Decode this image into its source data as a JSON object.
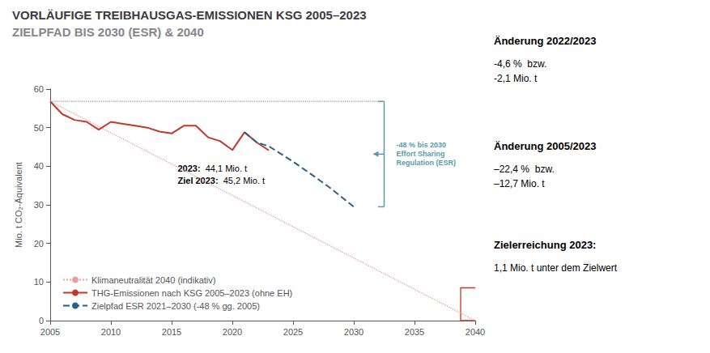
{
  "chart_data": {
    "type": "line",
    "title": "VORLÄUFIGE TREIBHAUSGAS-EMISSIONEN KSG 2005–2023",
    "subtitle": "ZIELPFAD BIS 2030 (ESR) & 2040",
    "y_label": "Mio. t CO₂-Äquivalent",
    "xlim": [
      2005,
      2040
    ],
    "ylim": [
      0,
      60
    ],
    "xticks": [
      2005,
      2010,
      2015,
      2020,
      2025,
      2030,
      2035,
      2040
    ],
    "yticks": [
      0,
      10,
      20,
      30,
      40,
      50,
      60
    ],
    "grid": false,
    "legend": "lower left",
    "series": [
      {
        "color": "#e8a0a0",
        "line_style": "dotted",
        "name": "Klimaneutralität 2040 (indikativ)",
        "x": [
          2005,
          2040
        ],
        "values": [
          56.8,
          0
        ]
      },
      {
        "color": "#aaaaaa",
        "line_style": "dotted",
        "x": [
          2005,
          2032
        ],
        "values": [
          56.8,
          56.8
        ]
      },
      {
        "color": "#c0392b",
        "line_style": "solid",
        "name": "THG-Emissionen nach KSG 2005–2023 (ohne EH)",
        "x": [
          2005,
          2006,
          2007,
          2008,
          2009,
          2010,
          2011,
          2012,
          2013,
          2014,
          2015,
          2016,
          2017,
          2018,
          2019,
          2020,
          2021,
          2022,
          2023
        ],
        "values": [
          56.8,
          53.5,
          52.0,
          51.5,
          49.5,
          51.5,
          51.0,
          50.5,
          50.0,
          49.0,
          48.5,
          50.5,
          50.5,
          47.5,
          46.5,
          44.2,
          48.8,
          46.2,
          44.1
        ]
      },
      {
        "color": "#2c5f8a",
        "line_style": "dashed",
        "name": "Zielpfad ESR 2021–2030 (-48 % gg. 2005)",
        "x": [
          2021,
          2022,
          2023,
          2024,
          2025,
          2026,
          2027,
          2028,
          2029,
          2030
        ],
        "values": [
          48.8,
          46.2,
          45.2,
          43.2,
          41.2,
          39.0,
          36.8,
          34.5,
          32.0,
          29.5
        ]
      }
    ],
    "annotations": [
      {
        "lines": [
          {
            "label": "2023:",
            "text": "44,1 Mio. t"
          },
          {
            "label": "Ziel 2023:",
            "text": "45,2 Mio. t"
          }
        ]
      },
      {
        "text": "-48 % bis 2030\nEffort Sharing\nRegulation (ESR)",
        "color": "#5a9aaa",
        "range": [
          56.8,
          29.5
        ]
      }
    ],
    "highlight": {
      "x": [
        2038.8,
        2040.3
      ],
      "y": [
        0,
        8.5
      ],
      "color": "#c0392b"
    },
    "side_panel": [
      {
        "title": "Änderung 2022/2023",
        "text": "-4,6 %  bzw.\n-2,1 Mio. t"
      },
      {
        "title": "Änderung 2005/2023",
        "text": "–22,4 %  bzw.\n–12,7 Mio. t"
      },
      {
        "title": "Zielerreichung 2023:",
        "text": "1,1 Mio. t unter dem Zielwert"
      }
    ]
  }
}
